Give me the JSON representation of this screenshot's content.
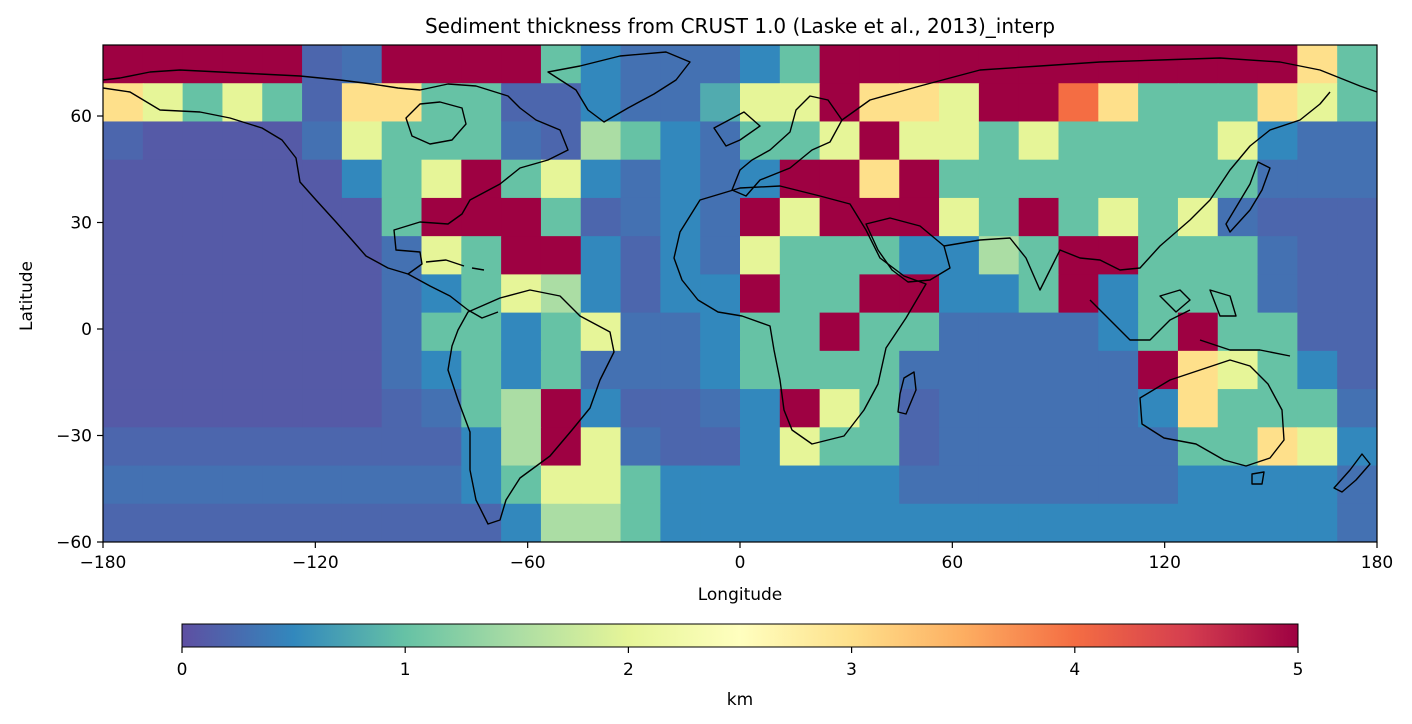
{
  "chart_data": {
    "type": "heatmap",
    "title": "Sediment thickness from CRUST 1.0 (Laske et al., 2013)_interp",
    "xlabel": "Longitude",
    "ylabel": "Latitude",
    "xlim": [
      -180,
      180
    ],
    "ylim": [
      -60,
      80
    ],
    "x_ticks": [
      -180,
      -120,
      -60,
      0,
      60,
      120,
      180
    ],
    "x_tick_labels": [
      "−180",
      "−120",
      "−60",
      "0",
      "60",
      "120",
      "180"
    ],
    "y_ticks": [
      60,
      30,
      0,
      -30,
      -60
    ],
    "y_tick_labels": [
      "60",
      "30",
      "0",
      "−30",
      "−60"
    ],
    "colorbar": {
      "label": "km",
      "range": [
        0,
        5
      ],
      "ticks": [
        0,
        1,
        2,
        3,
        4,
        5
      ],
      "tick_labels": [
        "0",
        "1",
        "2",
        "3",
        "4",
        "5"
      ],
      "colormap": "Spectral_r",
      "stops": [
        "#5e4fa2",
        "#3288bd",
        "#66c2a5",
        "#abdda4",
        "#e6f598",
        "#ffffbf",
        "#fee08b",
        "#fdae61",
        "#f46d43",
        "#d53e4f",
        "#9e0142"
      ],
      "placement": "bottom"
    },
    "grid": false,
    "basemap": "coastlines",
    "values_km": [
      [
        5,
        5,
        5,
        5,
        5,
        0.2,
        0.3,
        5,
        5,
        5,
        5,
        1,
        0.5,
        0.3,
        0.3,
        0.3,
        0.5,
        1,
        5,
        5,
        5,
        5,
        5,
        5,
        5,
        5,
        5,
        5,
        5,
        5,
        3,
        1
      ],
      [
        3,
        2,
        1,
        2,
        1,
        0.2,
        3,
        3,
        1,
        1,
        0.2,
        0.2,
        0.5,
        0.3,
        0.3,
        0.8,
        2,
        2,
        5,
        3,
        3,
        2,
        5,
        5,
        4,
        3,
        1,
        1,
        1,
        3,
        2,
        1
      ],
      [
        0.2,
        0.1,
        0.1,
        0.1,
        0.1,
        0.3,
        2,
        1,
        1,
        1,
        0.3,
        0.2,
        1.5,
        1,
        0.5,
        0.3,
        1,
        1,
        2,
        5,
        2,
        2,
        1,
        2,
        1,
        1,
        1,
        1,
        2,
        0.5,
        0.3,
        0.3
      ],
      [
        0.1,
        0.1,
        0.1,
        0.1,
        0.1,
        0.1,
        0.5,
        1,
        2,
        5,
        1,
        2,
        0.5,
        0.3,
        0.5,
        0.3,
        0.5,
        5,
        5,
        3,
        5,
        1,
        1,
        1,
        1,
        1,
        1,
        1,
        1,
        0.3,
        0.3,
        0.3
      ],
      [
        0.1,
        0.1,
        0.1,
        0.1,
        0.1,
        0.1,
        0.1,
        1,
        5,
        5,
        5,
        1,
        0.2,
        0.3,
        0.5,
        0.3,
        5,
        2,
        5,
        5,
        5,
        2,
        1,
        5,
        1,
        2,
        1,
        2,
        0.3,
        0.2,
        0.2,
        0.2
      ],
      [
        0.1,
        0.1,
        0.1,
        0.1,
        0.1,
        0.1,
        0.1,
        0.3,
        2,
        1,
        5,
        5,
        0.5,
        0.2,
        0.5,
        0.3,
        2,
        1,
        1,
        1,
        0.5,
        0.5,
        1.5,
        1,
        5,
        5,
        1,
        1,
        1,
        0.3,
        0.2,
        0.2
      ],
      [
        0.1,
        0.1,
        0.1,
        0.1,
        0.1,
        0.1,
        0.1,
        0.3,
        0.5,
        1,
        2,
        1.5,
        0.5,
        0.2,
        0.5,
        0.5,
        5,
        1,
        1,
        5,
        5,
        0.5,
        0.5,
        1,
        5,
        0.5,
        1,
        1,
        1,
        0.3,
        0.2,
        0.2
      ],
      [
        0.1,
        0.1,
        0.1,
        0.1,
        0.1,
        0.1,
        0.1,
        0.3,
        1,
        1,
        0.5,
        1,
        2,
        0.3,
        0.3,
        0.5,
        1,
        1,
        5,
        1,
        1,
        0.3,
        0.3,
        0.3,
        0.3,
        0.5,
        1,
        5,
        1,
        1,
        0.2,
        0.2
      ],
      [
        0.1,
        0.1,
        0.1,
        0.1,
        0.1,
        0.1,
        0.1,
        0.3,
        0.5,
        1,
        0.5,
        1,
        0.3,
        0.3,
        0.3,
        0.5,
        1,
        1,
        1,
        1,
        0.3,
        0.3,
        0.3,
        0.3,
        0.3,
        0.3,
        5,
        3,
        2,
        1,
        0.5,
        0.2
      ],
      [
        0.1,
        0.1,
        0.1,
        0.1,
        0.1,
        0.1,
        0.1,
        0.2,
        0.3,
        1,
        1.5,
        5,
        0.5,
        0.2,
        0.2,
        0.3,
        0.5,
        5,
        2,
        1,
        0.2,
        0.3,
        0.3,
        0.3,
        0.3,
        0.3,
        0.5,
        3,
        1,
        1,
        1,
        0.3
      ],
      [
        0.2,
        0.2,
        0.2,
        0.2,
        0.2,
        0.2,
        0.2,
        0.2,
        0.2,
        0.5,
        1.5,
        5,
        2,
        0.3,
        0.2,
        0.2,
        0.5,
        2,
        1,
        1,
        0.2,
        0.3,
        0.3,
        0.3,
        0.3,
        0.3,
        0.3,
        1,
        1,
        3,
        2,
        0.5
      ],
      [
        0.3,
        0.3,
        0.3,
        0.3,
        0.3,
        0.3,
        0.3,
        0.3,
        0.3,
        0.5,
        1,
        2,
        2,
        1,
        0.5,
        0.5,
        0.5,
        0.5,
        0.5,
        0.5,
        0.3,
        0.3,
        0.3,
        0.3,
        0.3,
        0.3,
        0.3,
        0.5,
        0.5,
        0.5,
        0.5,
        0.3
      ],
      [
        0.2,
        0.2,
        0.2,
        0.2,
        0.2,
        0.2,
        0.2,
        0.2,
        0.2,
        0.2,
        0.5,
        1.5,
        1.5,
        1,
        0.5,
        0.5,
        0.5,
        0.5,
        0.5,
        0.5,
        0.5,
        0.5,
        0.5,
        0.5,
        0.5,
        0.5,
        0.5,
        0.5,
        0.5,
        0.5,
        0.5,
        0.3
      ]
    ]
  }
}
